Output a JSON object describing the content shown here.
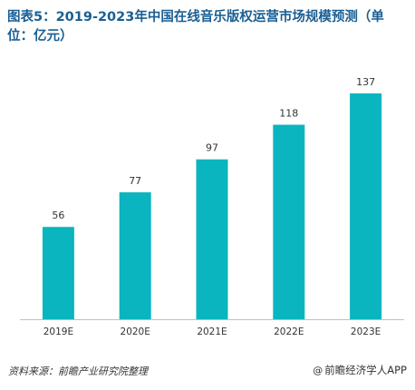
{
  "title": "图表5：2019-2023年中国在线音乐版权运营市场规模预测（单位：亿元）",
  "chart_data": {
    "type": "bar",
    "categories": [
      "2019E",
      "2020E",
      "2021E",
      "2022E",
      "2023E"
    ],
    "values": [
      56,
      77,
      97,
      118,
      137
    ],
    "ylim": [
      0,
      137
    ],
    "grid": false,
    "bar_color": "#0bb5bf",
    "data_labels": true
  },
  "footer": {
    "source": "资料来源：前瞻产业研究院整理",
    "brand": "前瞻经济学人APP",
    "brand_icon": "at-icon"
  }
}
